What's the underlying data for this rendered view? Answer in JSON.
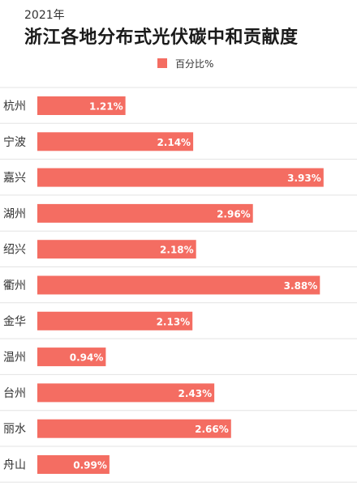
{
  "header": {
    "year_label": "2021年",
    "title": "浙江各地分布式光伏碳中和贡献度"
  },
  "legend": {
    "label": "百分比%",
    "color": "#f46d62"
  },
  "chart_data": {
    "type": "bar",
    "orientation": "horizontal",
    "title": "浙江各地分布式光伏碳中和贡献度",
    "categories": [
      "杭州",
      "宁波",
      "嘉兴",
      "湖州",
      "绍兴",
      "衢州",
      "金华",
      "温州",
      "台州",
      "丽水",
      "舟山"
    ],
    "series": [
      {
        "name": "百分比%",
        "values": [
          1.21,
          2.14,
          3.93,
          2.96,
          2.18,
          3.88,
          2.13,
          0.94,
          2.43,
          2.66,
          0.99
        ],
        "labels": [
          "1.21%",
          "2.14%",
          "3.93%",
          "2.96%",
          "2.18%",
          "3.88%",
          "2.13%",
          "0.94%",
          "2.43%",
          "2.66%",
          "0.99%"
        ]
      }
    ],
    "xlim": [
      0,
      4.3
    ],
    "grid": true,
    "legend_position": "top",
    "bar_color": "#f46d62",
    "label_color": "#ffffff",
    "gridline_color": "#e3e3e3"
  }
}
